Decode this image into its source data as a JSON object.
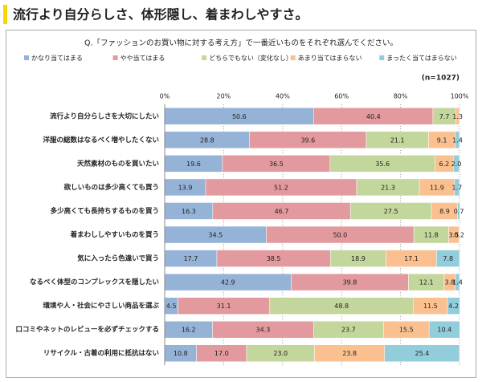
{
  "header": {
    "title": "流行より自分らしさ、体形隠し、着まわしやすさ。"
  },
  "chart_data": {
    "type": "stacked-bar-horizontal",
    "title": "Q.「ファッションのお買い物に対する考え方」で一番近いものをそれぞれ選んでください。",
    "annotation": "(n=1027)",
    "categories": [
      "流行より自分らしさを大切にしたい",
      "洋服の総数はなるべく増やしたくない",
      "天然素材のものを買いたい",
      "欲しいものは多少高くても買う",
      "多少高くても長持ちするものを買う",
      "着まわししやすいものを買う",
      "気に入ったら色違いで買う",
      "なるべく体型のコンプレックスを隠したい",
      "環境や人・社会にやさしい商品を選ぶ",
      "口コミやネットのレビューを必ずチェックする",
      "リサイクル・古着の利用に抵抗はない"
    ],
    "series": [
      {
        "name": "かなり当てはまる",
        "color": "#95b3d7",
        "values": [
          50.6,
          28.8,
          19.6,
          13.9,
          16.3,
          34.5,
          17.7,
          42.9,
          4.5,
          16.2,
          10.8
        ],
        "value_labels": [
          "50.6",
          "28.8",
          "19.6",
          "13.9",
          "16.3",
          "34.5",
          "17.7",
          "42.9",
          "4.5",
          "16.2",
          "10.8"
        ]
      },
      {
        "name": "やや当てはまる",
        "color": "#e39a9e",
        "values": [
          40.4,
          39.6,
          36.5,
          51.2,
          46.7,
          50.0,
          38.5,
          39.8,
          31.1,
          34.3,
          17.0
        ],
        "value_labels": [
          "40.4",
          "39.6",
          "36.5",
          "51.2",
          "46.7",
          "50.0",
          "38.5",
          "39.8",
          "31.1",
          "34.3",
          "17.0"
        ]
      },
      {
        "name": "どちらでもない（変化なし）",
        "color": "#c3d69b",
        "values": [
          7.7,
          21.1,
          35.6,
          21.3,
          27.5,
          11.8,
          18.9,
          12.1,
          48.8,
          23.7,
          23.0
        ],
        "value_labels": [
          "7.7",
          "21.1",
          "35.6",
          "21.3",
          "27.5",
          "11.8",
          "18.9",
          "12.1",
          "48.8",
          "23.7",
          "23.0"
        ]
      },
      {
        "name": "あまり当てはまらない",
        "color": "#fac090",
        "values": [
          1.3,
          9.1,
          6.2,
          11.9,
          8.9,
          3.5,
          17.1,
          3.8,
          11.5,
          15.5,
          23.8
        ],
        "value_labels": [
          "1.3",
          "9.1",
          "6.2",
          "11.9",
          "8.9",
          "3.5",
          "17.1",
          "3.8",
          "11.5",
          "15.5",
          "23.8"
        ]
      },
      {
        "name": "まったく当てはまらない",
        "color": "#92cddc",
        "values": [
          null,
          1.4,
          2.0,
          1.7,
          0.7,
          0.2,
          7.8,
          1.4,
          4.2,
          10.4,
          25.4
        ],
        "value_labels": [
          null,
          "1.4",
          "2.0",
          "1.7",
          "0.7",
          "0.2",
          "7.8",
          "1.4",
          "4.2",
          "10.4",
          "25.4"
        ]
      }
    ],
    "xlim": [
      0,
      100
    ],
    "xticks": [
      {
        "value": 0,
        "label": "0%"
      },
      {
        "value": 20,
        "label": "20%"
      },
      {
        "value": 40,
        "label": "40%"
      },
      {
        "value": 60,
        "label": "60%"
      },
      {
        "value": 80,
        "label": "80%"
      },
      {
        "value": 100,
        "label": "100%"
      }
    ],
    "grid": true
  }
}
